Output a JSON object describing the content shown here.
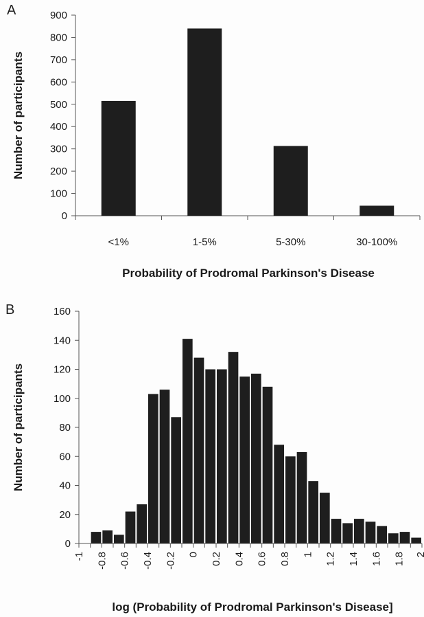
{
  "chart_data": [
    {
      "type": "bar",
      "panel_label": "A",
      "categories": [
        "<1%",
        "1-5%",
        "5-30%",
        "30-100%"
      ],
      "values": [
        515,
        840,
        313,
        45
      ],
      "xlabel": "Probability of Prodromal Parkinson's Disease",
      "ylabel": "Number of participants",
      "ylim": [
        0,
        900
      ],
      "yticks": [
        "0",
        "100",
        "200",
        "300",
        "400",
        "500",
        "600",
        "700",
        "800",
        "900"
      ],
      "grid": false,
      "color": "#1e1e1e"
    },
    {
      "type": "bar",
      "panel_label": "B",
      "x_bin_starts": [
        -1.0,
        -0.9,
        -0.8,
        -0.7,
        -0.6,
        -0.5,
        -0.4,
        -0.3,
        -0.2,
        -0.1,
        0.0,
        0.1,
        0.2,
        0.3,
        0.4,
        0.5,
        0.6,
        0.7,
        0.8,
        0.9,
        1.0,
        1.1,
        1.2,
        1.3,
        1.4,
        1.5,
        1.6,
        1.7,
        1.8,
        1.9
      ],
      "values": [
        0,
        8,
        9,
        6,
        22,
        27,
        103,
        106,
        87,
        141,
        128,
        120,
        120,
        132,
        115,
        117,
        108,
        68,
        60,
        63,
        43,
        35,
        17,
        14,
        17,
        15,
        12,
        7,
        8,
        4
      ],
      "xlim": [
        -1,
        2
      ],
      "xticks": [
        "-1",
        "-0.8",
        "-0.6",
        "-0.4",
        "-0.2",
        "0",
        "0.2",
        "0.4",
        "0.6",
        "0.8",
        "1",
        "1.2",
        "1.4",
        "1.6",
        "1.8",
        "2"
      ],
      "xlabel": "log (Probability of Prodromal Parkinson's Disease]",
      "ylabel": "Number of participants",
      "ylim": [
        0,
        160
      ],
      "yticks": [
        "0",
        "20",
        "40",
        "60",
        "80",
        "100",
        "120",
        "140",
        "160"
      ],
      "grid": false,
      "color": "#1e1e1e"
    }
  ]
}
